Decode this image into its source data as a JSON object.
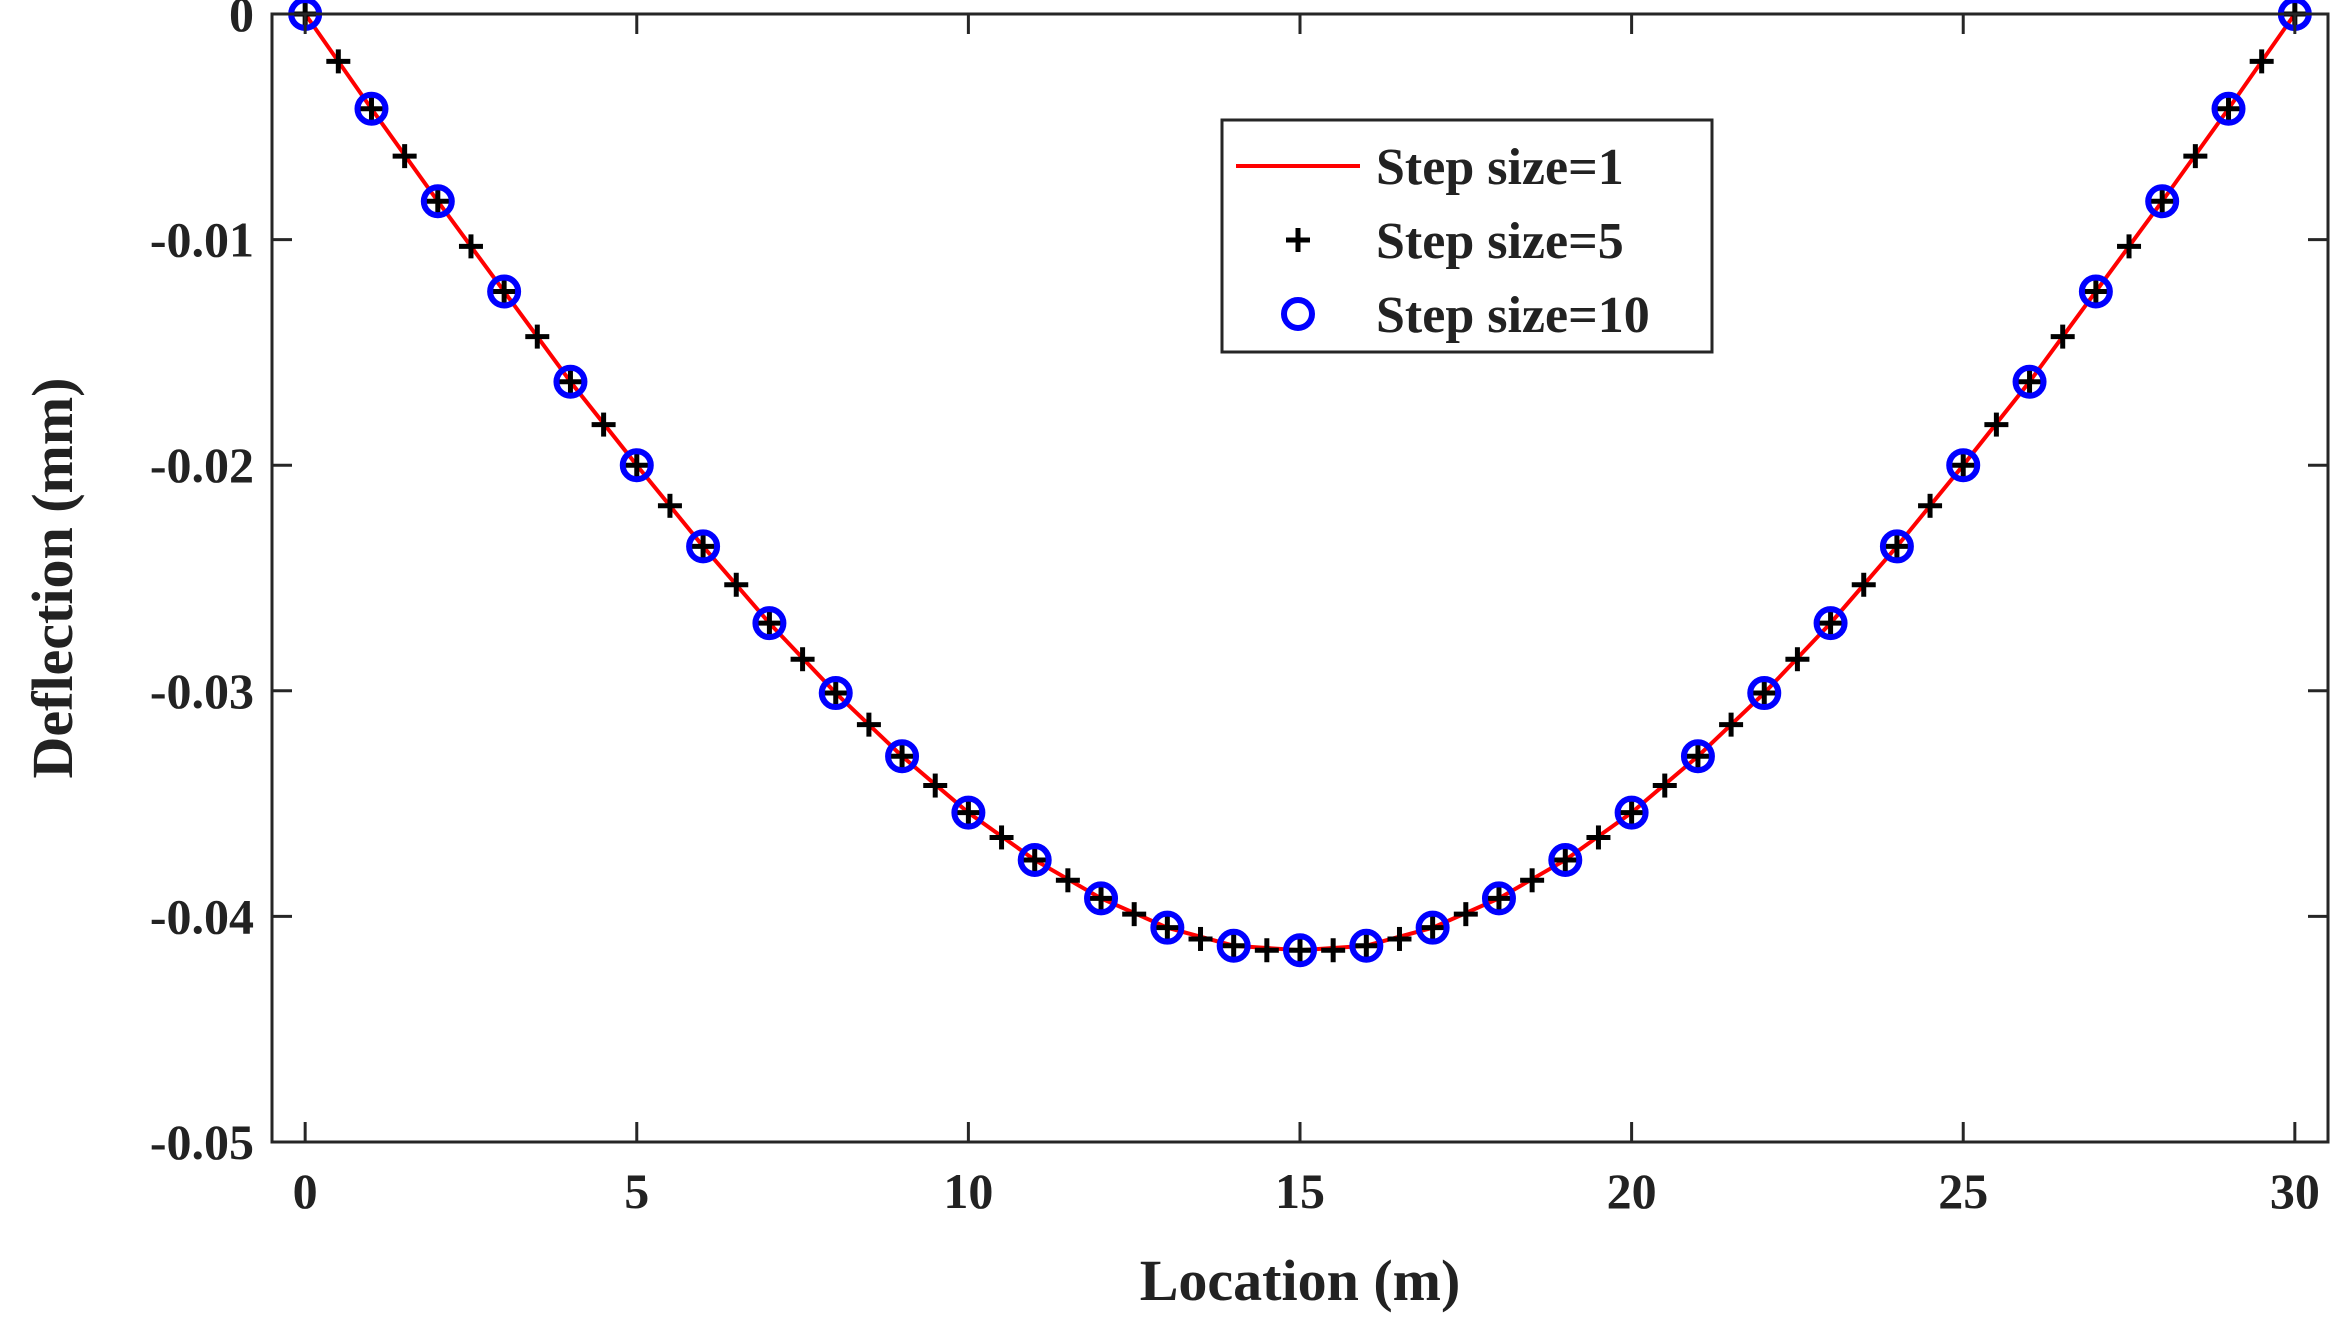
{
  "chart_data": {
    "type": "line",
    "title": "",
    "xlabel": "Location (m)",
    "ylabel": "Deflection (mm)",
    "xlim": [
      -0.5,
      30.5
    ],
    "ylim": [
      -0.05,
      0
    ],
    "xticks": [
      0,
      5,
      10,
      15,
      20,
      25,
      30
    ],
    "xtick_labels": [
      "0",
      "5",
      "10",
      "15",
      "20",
      "25",
      "30"
    ],
    "yticks": [
      0,
      -0.01,
      -0.02,
      -0.03,
      -0.04,
      -0.05
    ],
    "ytick_labels": [
      "0",
      "-0.01",
      "-0.02",
      "-0.03",
      "-0.04",
      "-0.05"
    ],
    "grid": false,
    "legend_position": "top-center",
    "series": [
      {
        "name": "Step size=1",
        "style": "line",
        "color": "#ff0000",
        "x": [
          0,
          1,
          2,
          3,
          4,
          5,
          6,
          7,
          8,
          9,
          10,
          11,
          12,
          13,
          14,
          15,
          16,
          17,
          18,
          19,
          20,
          21,
          22,
          23,
          24,
          25,
          26,
          27,
          28,
          29,
          30
        ],
        "y": [
          0,
          -0.0042,
          -0.0083,
          -0.0123,
          -0.0163,
          -0.02,
          -0.0236,
          -0.027,
          -0.0301,
          -0.0329,
          -0.0354,
          -0.0375,
          -0.0392,
          -0.0405,
          -0.0413,
          -0.0415,
          -0.0413,
          -0.0405,
          -0.0392,
          -0.0375,
          -0.0354,
          -0.0329,
          -0.0301,
          -0.027,
          -0.0236,
          -0.02,
          -0.0163,
          -0.0123,
          -0.0083,
          -0.0042,
          0
        ]
      },
      {
        "name": "Step size=5",
        "style": "plus",
        "color": "#000000",
        "x": [
          0,
          0.5,
          1,
          1.5,
          2,
          2.5,
          3,
          3.5,
          4,
          4.5,
          5,
          5.5,
          6,
          6.5,
          7,
          7.5,
          8,
          8.5,
          9,
          9.5,
          10,
          10.5,
          11,
          11.5,
          12,
          12.5,
          13,
          13.5,
          14,
          14.5,
          15,
          15.5,
          16,
          16.5,
          17,
          17.5,
          18,
          18.5,
          19,
          19.5,
          20,
          20.5,
          21,
          21.5,
          22,
          22.5,
          23,
          23.5,
          24,
          24.5,
          25,
          25.5,
          26,
          26.5,
          27,
          27.5,
          28,
          28.5,
          29,
          29.5,
          30
        ],
        "y": [
          0,
          -0.0021,
          -0.0042,
          -0.0063,
          -0.0083,
          -0.0103,
          -0.0123,
          -0.0143,
          -0.0163,
          -0.0182,
          -0.02,
          -0.0218,
          -0.0236,
          -0.0253,
          -0.027,
          -0.0286,
          -0.0301,
          -0.0315,
          -0.0329,
          -0.0342,
          -0.0354,
          -0.0365,
          -0.0375,
          -0.0384,
          -0.0392,
          -0.0399,
          -0.0405,
          -0.041,
          -0.0413,
          -0.0415,
          -0.0415,
          -0.0415,
          -0.0413,
          -0.041,
          -0.0405,
          -0.0399,
          -0.0392,
          -0.0384,
          -0.0375,
          -0.0365,
          -0.0354,
          -0.0342,
          -0.0329,
          -0.0315,
          -0.0301,
          -0.0286,
          -0.027,
          -0.0253,
          -0.0236,
          -0.0218,
          -0.02,
          -0.0182,
          -0.0163,
          -0.0143,
          -0.0123,
          -0.0103,
          -0.0083,
          -0.0063,
          -0.0042,
          -0.0021,
          0
        ]
      },
      {
        "name": "Step size=10",
        "style": "circle",
        "color": "#0000ff",
        "x": [
          0,
          1,
          2,
          3,
          4,
          5,
          6,
          7,
          8,
          9,
          10,
          11,
          12,
          13,
          14,
          15,
          16,
          17,
          18,
          19,
          20,
          21,
          22,
          23,
          24,
          25,
          26,
          27,
          28,
          29,
          30
        ],
        "y": [
          0,
          -0.0042,
          -0.0083,
          -0.0123,
          -0.0163,
          -0.02,
          -0.0236,
          -0.027,
          -0.0301,
          -0.0329,
          -0.0354,
          -0.0375,
          -0.0392,
          -0.0405,
          -0.0413,
          -0.0415,
          -0.0413,
          -0.0405,
          -0.0392,
          -0.0375,
          -0.0354,
          -0.0329,
          -0.0301,
          -0.027,
          -0.0236,
          -0.02,
          -0.0163,
          -0.0123,
          -0.0083,
          -0.0042,
          0
        ]
      }
    ]
  }
}
